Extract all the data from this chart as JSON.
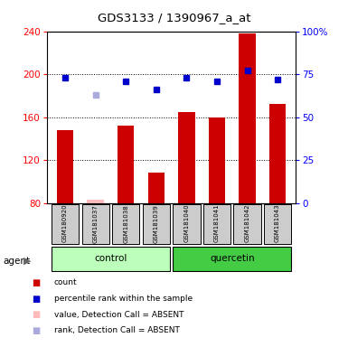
{
  "title": "GDS3133 / 1390967_a_at",
  "samples": [
    "GSM180920",
    "GSM181037",
    "GSM181038",
    "GSM181039",
    "GSM181040",
    "GSM181041",
    "GSM181042",
    "GSM181043"
  ],
  "bar_values": [
    148,
    83,
    152,
    108,
    165,
    160,
    238,
    172
  ],
  "bar_absent": [
    false,
    true,
    false,
    false,
    false,
    false,
    false,
    false
  ],
  "rank_values": [
    73,
    63,
    71,
    66,
    73,
    71,
    77,
    72
  ],
  "rank_absent": [
    false,
    true,
    false,
    false,
    false,
    false,
    false,
    false
  ],
  "ylim_left": [
    80,
    240
  ],
  "ylim_right": [
    0,
    100
  ],
  "yticks_left": [
    80,
    120,
    160,
    200,
    240
  ],
  "yticks_right": [
    0,
    25,
    50,
    75,
    100
  ],
  "ytick_right_labels": [
    "0",
    "25",
    "50",
    "75",
    "100%"
  ],
  "bar_color_present": "#cc0000",
  "bar_color_absent": "#ffbbbb",
  "rank_color_present": "#0000cc",
  "rank_color_absent": "#aaaadd",
  "control_color": "#bbffbb",
  "quercetin_color": "#44cc44",
  "sample_box_color": "#cccccc",
  "legend_labels": [
    "count",
    "percentile rank within the sample",
    "value, Detection Call = ABSENT",
    "rank, Detection Call = ABSENT"
  ],
  "legend_colors": [
    "#cc0000",
    "#0000cc",
    "#ffbbbb",
    "#aaaadd"
  ]
}
